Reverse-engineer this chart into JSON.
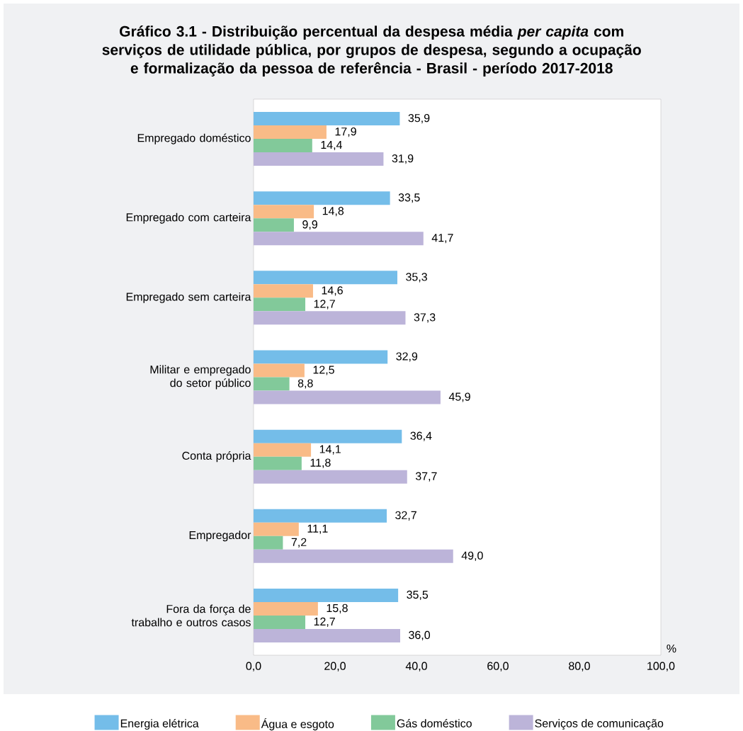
{
  "chart_data": {
    "type": "bar",
    "orientation": "horizontal",
    "title": "Gráfico 3.1 - Distribuição percentual da despesa média *per capita* com serviços de utilidade pública, por grupos de despesa, segundo a ocupação e formalização da pessoa de referência - Brasil - período 2017-2018",
    "xlabel": "%",
    "categories": [
      "Empregado doméstico",
      "Empregado com carteira",
      "Empregado sem carteira",
      "Militar e empregado do setor público",
      "Conta própria",
      "Empregador",
      "Fora da força de trabalho e outros casos"
    ],
    "series": [
      {
        "name": "Energia elétrica",
        "color": "#74bde9",
        "values": [
          35.9,
          33.5,
          35.3,
          32.9,
          36.4,
          32.7,
          35.5
        ],
        "value_labels": [
          "35,9",
          "33,5",
          "35,3",
          "32,9",
          "36,4",
          "32,7",
          "35,5"
        ]
      },
      {
        "name": "Água e esgoto",
        "color": "#f9bb87",
        "values": [
          17.9,
          14.8,
          14.6,
          12.5,
          14.1,
          11.1,
          15.8
        ],
        "value_labels": [
          "17,9",
          "14,8",
          "14,6",
          "12,5",
          "14,1",
          "11,1",
          "15,8"
        ]
      },
      {
        "name": "Gás doméstico",
        "color": "#82c99a",
        "values": [
          14.4,
          9.9,
          12.7,
          8.8,
          11.8,
          7.2,
          12.7
        ],
        "value_labels": [
          "14,4",
          "9,9",
          "12,7",
          "8,8",
          "11,8",
          "7,2",
          "12,7"
        ]
      },
      {
        "name": "Serviços de comunicação",
        "color": "#bcb4d9",
        "values": [
          31.9,
          41.7,
          37.3,
          45.9,
          37.7,
          49.0,
          36.0
        ],
        "value_labels": [
          "31,9",
          "41,7",
          "37,3",
          "45,9",
          "37,7",
          "49,0",
          "36,0"
        ]
      }
    ],
    "xlim": [
      0,
      100
    ],
    "xticks": [
      {
        "value": 0,
        "label": "0,0"
      },
      {
        "value": 20,
        "label": "20,0"
      },
      {
        "value": 40,
        "label": "40,0"
      },
      {
        "value": 60,
        "label": "60,0"
      },
      {
        "value": 80,
        "label": "80,0"
      },
      {
        "value": 100,
        "label": "100,0"
      }
    ],
    "legend": "bottom"
  }
}
